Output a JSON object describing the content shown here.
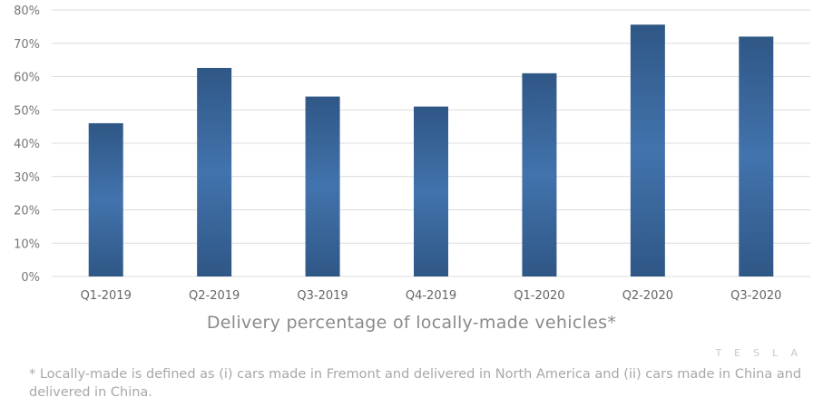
{
  "chart_data": {
    "type": "bar",
    "title": "Delivery percentage of locally-made vehicles*",
    "xlabel": "",
    "ylabel": "",
    "categories": [
      "Q1-2019",
      "Q2-2019",
      "Q3-2019",
      "Q4-2019",
      "Q1-2020",
      "Q2-2020",
      "Q3-2020"
    ],
    "values": [
      46,
      62.6,
      54,
      51,
      61,
      75.6,
      72
    ],
    "unit": "%",
    "ylim": [
      0,
      80
    ],
    "yticks": [
      "0%",
      "10%",
      "20%",
      "30%",
      "40%",
      "50%",
      "60%",
      "70%",
      "80%"
    ],
    "grid": true,
    "colors": {
      "bar_edge": "#2f5786",
      "bar_mid": "#4273ad",
      "grid": "#dcdcdc"
    }
  },
  "footnote": "* Locally-made is defined as (i) cars made in Fremont and delivered in North America and (ii) cars made in China and delivered in China.",
  "logo": "TESLA"
}
